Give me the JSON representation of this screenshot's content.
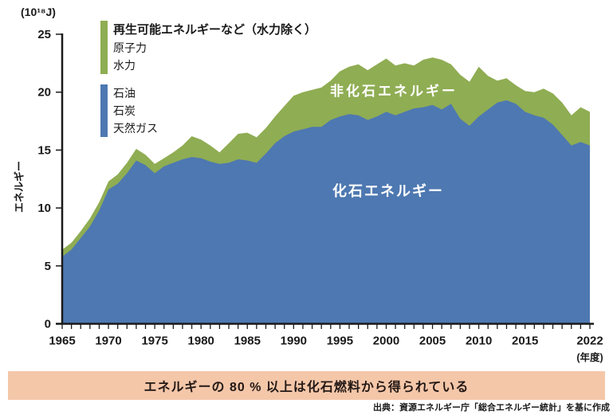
{
  "figure": {
    "unit_label": "(10¹⁸J)",
    "y_axis_title": "エネルギー",
    "x_axis_unit": "(年度)"
  },
  "legend": {
    "non_fossil_title": "再生可能エネルギーなど（水力除く）",
    "non_fossil_items": [
      "原子力",
      "水力"
    ],
    "fossil_items": [
      "石油",
      "石炭",
      "天然ガス"
    ]
  },
  "area_labels": {
    "non_fossil": "非化石エネルギー",
    "fossil": "化石エネルギー"
  },
  "banner": {
    "text": "エネルギーの 80 % 以上は化石燃料から得られている"
  },
  "source": "出典：資源エネルギー庁「総合エネルギー統計」を基に作成",
  "colors": {
    "fossil": "#4E78B1",
    "non_fossil": "#8FAD53",
    "banner_bg": "#F4C7A9",
    "ink": "#1A1A1A",
    "area_label_text": "#FFFFFF"
  },
  "chart_data": {
    "type": "area",
    "stacked": true,
    "title": "",
    "ylabel": "エネルギー (10¹⁸J)",
    "xlabel": "年度",
    "ylim": [
      0,
      25
    ],
    "y_ticks": [
      0,
      5,
      10,
      15,
      20,
      25
    ],
    "x_tick_labels": [
      "1965",
      "1970",
      "1975",
      "1980",
      "1985",
      "1990",
      "1995",
      "2000",
      "2005",
      "2010",
      "2015",
      "2022"
    ],
    "grid": false,
    "legend_position": "top-left",
    "years": [
      1965,
      1966,
      1967,
      1968,
      1969,
      1970,
      1971,
      1972,
      1973,
      1974,
      1975,
      1976,
      1977,
      1978,
      1979,
      1980,
      1981,
      1982,
      1983,
      1984,
      1985,
      1986,
      1987,
      1988,
      1989,
      1990,
      1991,
      1992,
      1993,
      1994,
      1995,
      1996,
      1997,
      1998,
      1999,
      2000,
      2001,
      2002,
      2003,
      2004,
      2005,
      2006,
      2007,
      2008,
      2009,
      2010,
      2011,
      2012,
      2013,
      2014,
      2015,
      2016,
      2017,
      2018,
      2019,
      2020,
      2021,
      2022
    ],
    "series": [
      {
        "name": "化石エネルギー",
        "components": [
          "石油",
          "石炭",
          "天然ガス"
        ],
        "color": "#4E78B1",
        "values": [
          5.8,
          6.4,
          7.4,
          8.4,
          9.8,
          11.6,
          12.1,
          13.0,
          14.1,
          13.7,
          13.0,
          13.6,
          13.9,
          14.2,
          14.4,
          14.3,
          14.0,
          13.8,
          13.9,
          14.2,
          14.1,
          13.9,
          14.7,
          15.6,
          16.2,
          16.6,
          16.8,
          17.0,
          17.0,
          17.6,
          17.9,
          18.1,
          18.0,
          17.6,
          17.9,
          18.3,
          18.0,
          18.3,
          18.6,
          18.7,
          18.9,
          18.5,
          19.0,
          17.7,
          17.1,
          17.9,
          18.5,
          19.1,
          19.3,
          19.0,
          18.3,
          18.0,
          17.8,
          17.2,
          16.3,
          15.4,
          15.7,
          15.4
        ]
      },
      {
        "name": "非化石エネルギー",
        "components": [
          "再生可能エネルギーなど（水力除く）",
          "原子力",
          "水力"
        ],
        "color": "#8FAD53",
        "values": [
          0.6,
          0.6,
          0.6,
          0.7,
          0.7,
          0.7,
          0.8,
          0.9,
          1.0,
          0.9,
          0.8,
          0.7,
          0.9,
          1.2,
          1.8,
          1.6,
          1.4,
          1.0,
          1.7,
          2.2,
          2.4,
          2.2,
          2.2,
          2.3,
          2.6,
          3.1,
          3.2,
          3.2,
          3.4,
          3.4,
          3.9,
          4.1,
          4.4,
          4.3,
          4.5,
          4.6,
          4.3,
          4.2,
          3.7,
          4.1,
          4.1,
          4.3,
          3.4,
          3.8,
          3.8,
          4.3,
          2.9,
          1.9,
          1.9,
          1.6,
          1.8,
          2.0,
          2.5,
          2.7,
          2.8,
          2.6,
          3.0,
          2.9
        ]
      }
    ]
  }
}
